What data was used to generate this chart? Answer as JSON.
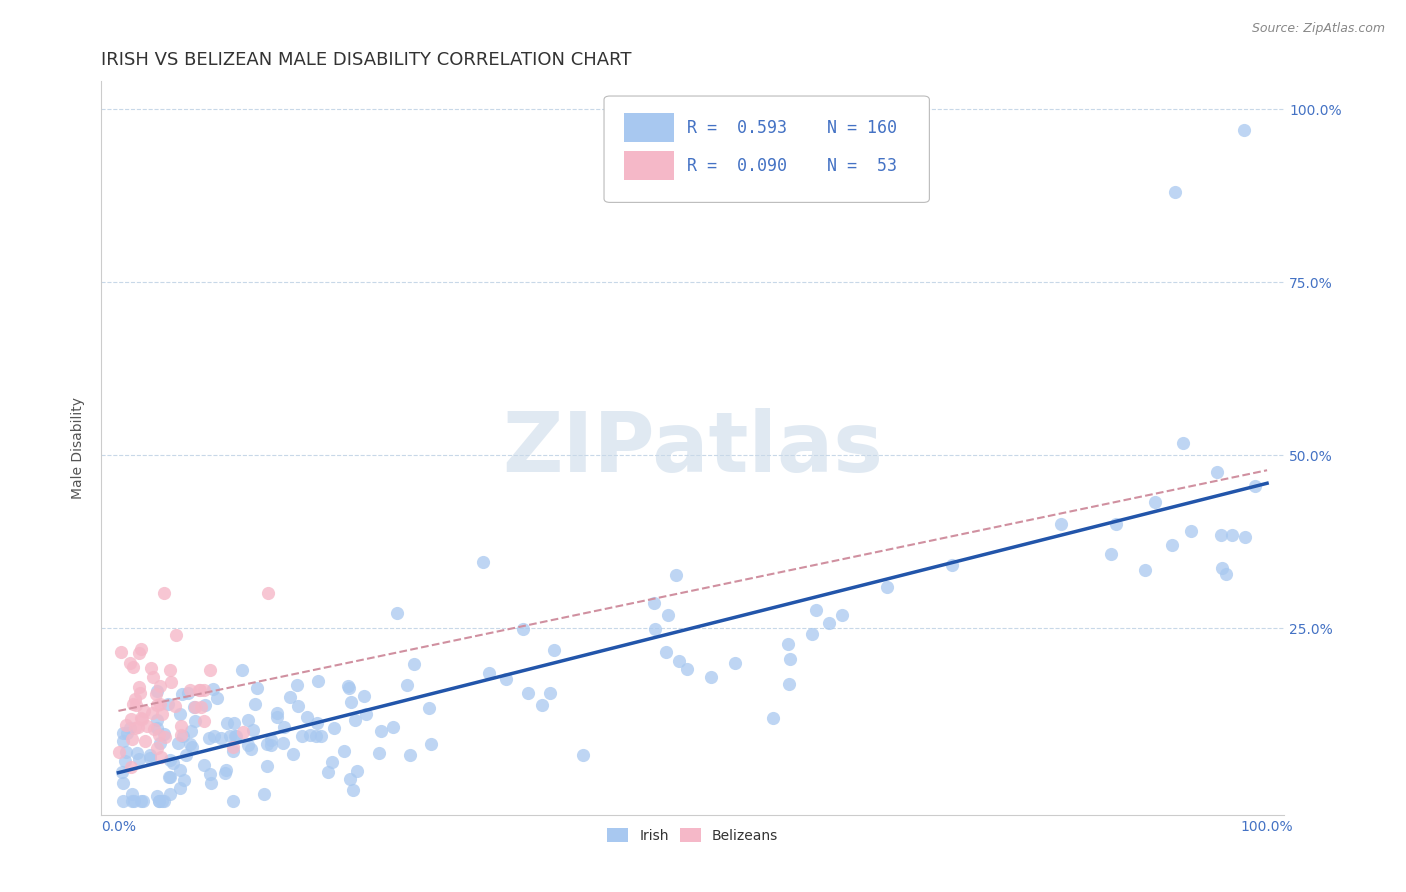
{
  "title": "IRISH VS BELIZEAN MALE DISABILITY CORRELATION CHART",
  "source_text": "Source: ZipAtlas.com",
  "ylabel": "Male Disability",
  "irish_R": "0.593",
  "irish_N": "160",
  "belizean_R": "0.090",
  "belizean_N": "53",
  "scatter_irish_color": "#a8c8f0",
  "scatter_belizean_color": "#f5b8c8",
  "trendline_irish_color": "#2255aa",
  "trendline_belizean_color": "#d090a0",
  "watermark": "ZIPatlas",
  "background_color": "#ffffff",
  "grid_color": "#c8d8e8",
  "title_fontsize": 13,
  "tick_color": "#4472c4",
  "tick_fontsize": 10,
  "ylabel_fontsize": 10,
  "source_fontsize": 9
}
